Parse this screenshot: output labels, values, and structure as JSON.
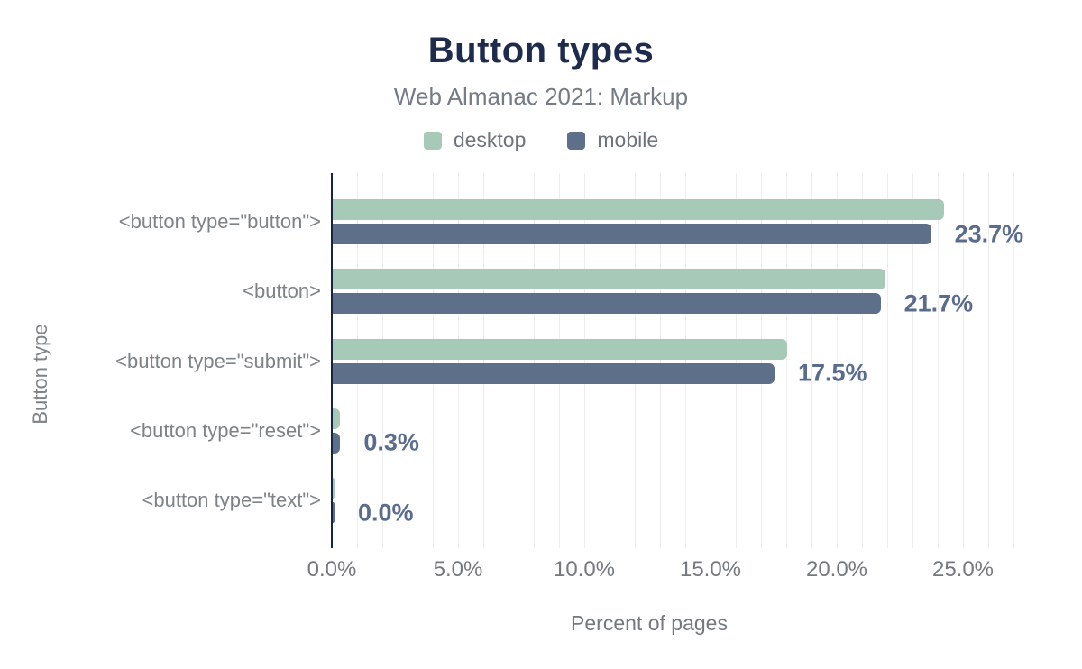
{
  "chart_data": {
    "type": "bar",
    "orientation": "horizontal",
    "title": "Button types",
    "subtitle": "Web Almanac 2021: Markup",
    "xlabel": "Percent of pages",
    "ylabel": "Button type",
    "categories": [
      "<button type=\"button\">",
      "<button>",
      "<button type=\"submit\">",
      "<button type=\"reset\">",
      "<button type=\"text\">"
    ],
    "series": [
      {
        "name": "desktop",
        "color": "#a6c9b8",
        "values": [
          24.2,
          21.9,
          18.0,
          0.3,
          0.0
        ]
      },
      {
        "name": "mobile",
        "color": "#5e7089",
        "values": [
          23.7,
          21.7,
          17.5,
          0.3,
          0.0
        ]
      }
    ],
    "data_labels": [
      "23.7%",
      "21.7%",
      "17.5%",
      "0.3%",
      "0.0%"
    ],
    "x_ticks": [
      {
        "label": "0.0%",
        "value": 0
      },
      {
        "label": "5.0%",
        "value": 5
      },
      {
        "label": "10.0%",
        "value": 10
      },
      {
        "label": "15.0%",
        "value": 15
      },
      {
        "label": "20.0%",
        "value": 20
      },
      {
        "label": "25.0%",
        "value": 25
      }
    ],
    "xlim": [
      0,
      27.35
    ],
    "grid": "vertical gridlines every 1%",
    "legend_position": "top-center"
  },
  "colors": {
    "title": "#1e2b4d",
    "subtitle": "#767c85",
    "legend_text": "#6e747b",
    "category_text": "#7e8387",
    "tick_text": "#75797e",
    "axis_title_text": "#75797e",
    "data_label": "#5a6c8e",
    "axis_line": "#152642",
    "gridline": "#ededed",
    "background": "#ffffff"
  }
}
